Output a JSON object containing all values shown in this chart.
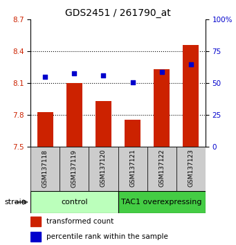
{
  "title": "GDS2451 / 261790_at",
  "samples": [
    "GSM137118",
    "GSM137119",
    "GSM137120",
    "GSM137121",
    "GSM137122",
    "GSM137123"
  ],
  "transformed_counts": [
    7.83,
    8.1,
    7.93,
    7.76,
    8.23,
    8.46
  ],
  "percentile_ranks": [
    55,
    58,
    56,
    51,
    59,
    65
  ],
  "ylim_left": [
    7.5,
    8.7
  ],
  "ylim_right": [
    0,
    100
  ],
  "yticks_left": [
    7.5,
    7.8,
    8.1,
    8.4,
    8.7
  ],
  "yticks_right": [
    0,
    25,
    50,
    75,
    100
  ],
  "bar_color": "#cc2200",
  "dot_color": "#0000cc",
  "bar_bottom": 7.5,
  "ctrl_color": "#bbffbb",
  "tac_color": "#44cc44",
  "sample_box_color": "#cccccc",
  "group_label": "strain",
  "ctrl_label": "control",
  "tac_label": "TAC1 overexpressing",
  "legend_bar_label": "transformed count",
  "legend_dot_label": "percentile rank within the sample",
  "dotted_yticks": [
    7.8,
    8.1,
    8.4
  ]
}
